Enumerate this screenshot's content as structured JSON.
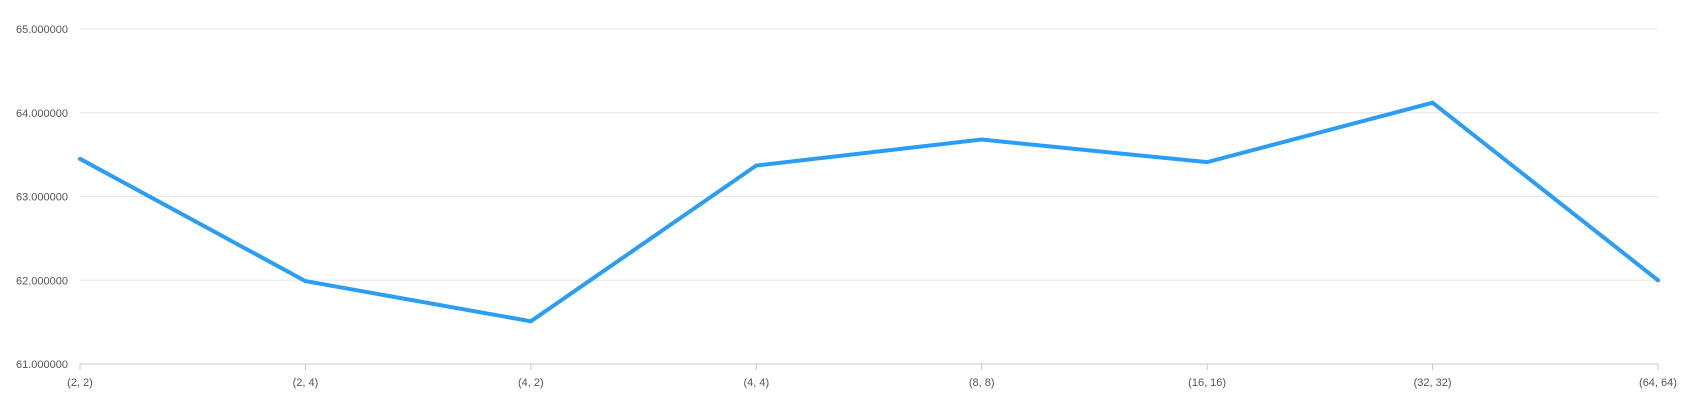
{
  "chart_data": {
    "type": "line",
    "title": "",
    "xlabel": "",
    "ylabel": "",
    "categories": [
      "(2, 2)",
      "(2, 4)",
      "(4, 2)",
      "(4, 4)",
      "(8, 8)",
      "(16, 16)",
      "(32, 32)",
      "(64, 64)"
    ],
    "series": [
      {
        "values": [
          63.45,
          61.99,
          61.51,
          63.37,
          63.68,
          63.41,
          64.12,
          62.0
        ],
        "color": "#2a9df4"
      }
    ],
    "ylim": [
      61,
      65
    ],
    "y_ticks": [
      61,
      62,
      63,
      64,
      65
    ],
    "y_tick_labels": [
      "61.000000",
      "62.000000",
      "63.000000",
      "64.000000",
      "65.000000"
    ],
    "grid": true,
    "legend": "none"
  }
}
